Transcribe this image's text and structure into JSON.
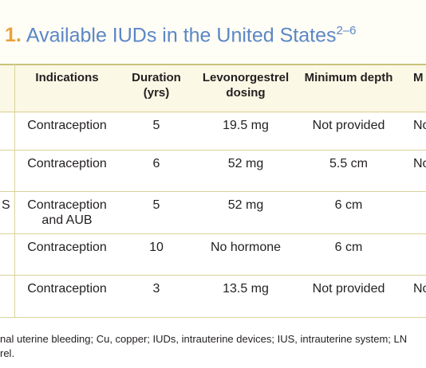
{
  "header": {
    "number": "1.",
    "title": "Available IUDs in the United States",
    "superscript": "2–6"
  },
  "table": {
    "columns": [
      "",
      "Indications",
      "Duration (yrs)",
      "Levonorgestrel dosing",
      "Minimum depth",
      "M"
    ],
    "rows": [
      [
        "",
        "Contraception",
        "5",
        "19.5 mg",
        "Not provided",
        "No"
      ],
      [
        "",
        "Contraception",
        "6",
        "52 mg",
        "5.5 cm",
        "No"
      ],
      [
        "S",
        "Contraception and AUB",
        "5",
        "52 mg",
        "6 cm",
        ""
      ],
      [
        "",
        "Contraception",
        "10",
        "No hormone",
        "6 cm",
        ""
      ],
      [
        "",
        "Contraception",
        "3",
        "13.5 mg",
        "Not provided",
        "No"
      ]
    ]
  },
  "footer": {
    "lines": [
      "nal uterine bleeding; Cu, copper; IUDs, intrauterine devices; IUS, intrauterine system; LN",
      "rel."
    ]
  }
}
